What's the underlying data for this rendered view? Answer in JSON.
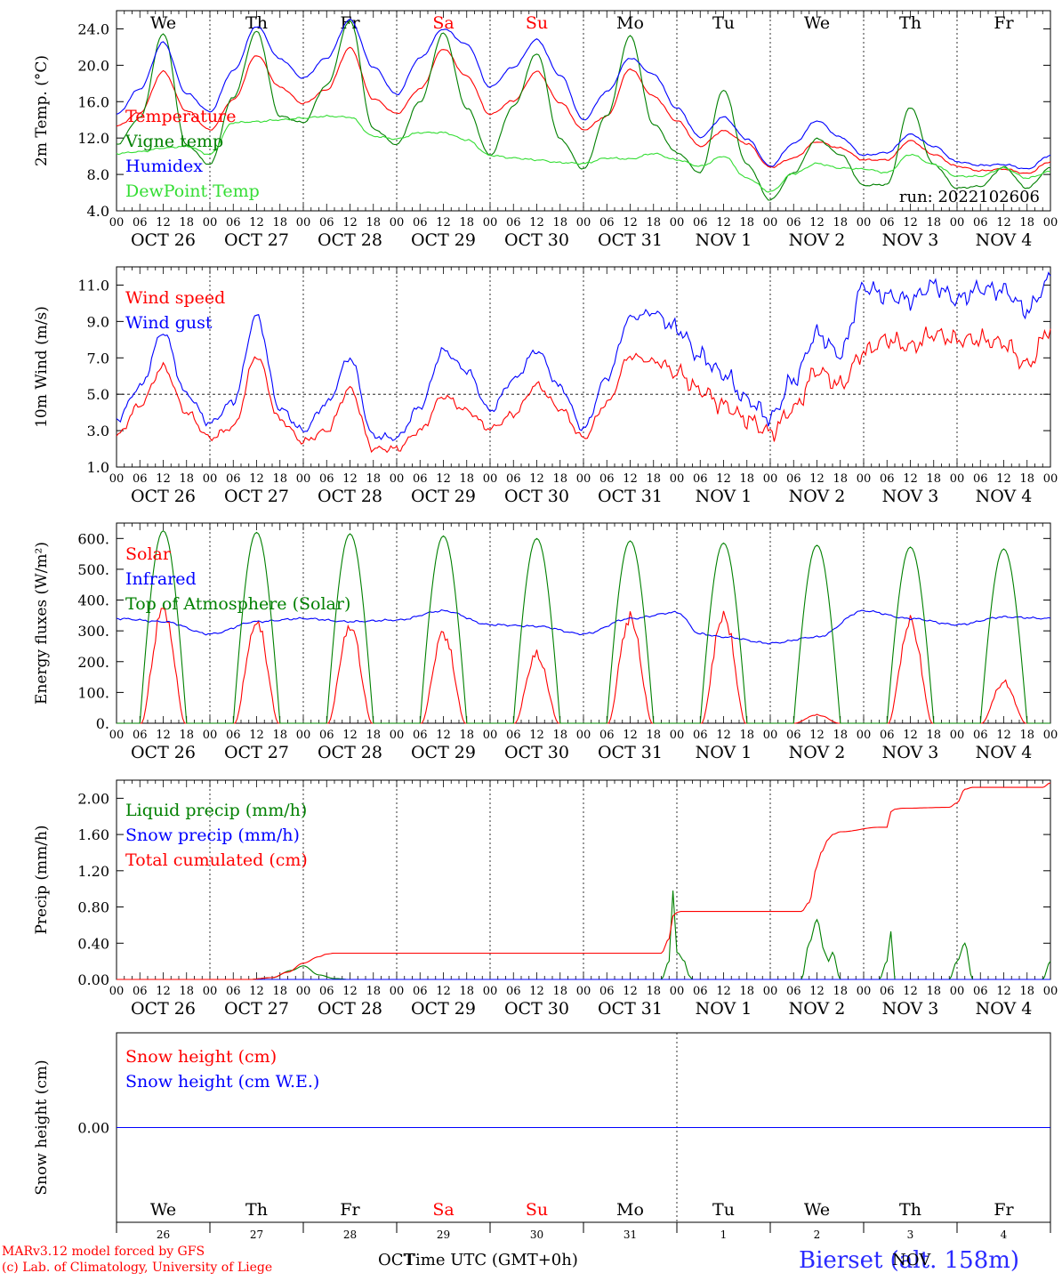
{
  "page": {
    "credits": [
      "MARv3.12 model forced by GFS",
      "(c) Lab. of Climatology, University of Liege"
    ],
    "station": "Bierset (alt. 158m)",
    "xaxis_title": "Time UTC (GMT+0h)",
    "month_left": "OCT",
    "month_right": "NOV"
  },
  "timeline": {
    "hour_ticks": [
      "00",
      "06",
      "12",
      "18"
    ],
    "final_tick": "00",
    "date_labels": [
      "OCT 26",
      "OCT 27",
      "OCT 28",
      "OCT 29",
      "OCT 30",
      "OCT 31",
      "NOV  1",
      "NOV  2",
      "NOV  3",
      "NOV  4"
    ],
    "weekdays": [
      "We",
      "Th",
      "Fr",
      "Sa",
      "Su",
      "Mo",
      "Tu",
      "We",
      "Th",
      "Fr"
    ],
    "weekday_colors": [
      "#000000",
      "#000000",
      "#000000",
      "#ff0000",
      "#ff0000",
      "#000000",
      "#000000",
      "#000000",
      "#000000",
      "#000000"
    ],
    "day_numbers": [
      "26",
      "27",
      "28",
      "29",
      "30",
      "31",
      "1",
      "2",
      "3",
      "4"
    ]
  },
  "chart_data": [
    {
      "type": "line",
      "id": "temp",
      "ylabel": "2m Temp. (°C)",
      "ylim": [
        4,
        26
      ],
      "yticks": [
        4.0,
        8.0,
        12.0,
        16.0,
        20.0,
        24.0
      ],
      "x_unit": "hours since 2022-10-26 00 UTC",
      "annotation": "run: 2022102606",
      "legend_position": "left",
      "series": [
        {
          "name": "Temperature",
          "color": "#ff0000",
          "x": [
            0,
            6,
            12,
            18,
            24,
            30,
            36,
            42,
            48,
            54,
            60,
            66,
            72,
            78,
            84,
            90,
            96,
            102,
            108,
            114,
            120,
            126,
            132,
            138,
            144,
            150,
            156,
            162,
            168,
            174,
            180,
            186,
            192,
            198,
            204,
            210,
            216,
            222,
            228,
            234,
            240
          ],
          "values": [
            13.3,
            14.8,
            19.3,
            15.0,
            12.9,
            16.2,
            21.1,
            17.6,
            15.8,
            17.3,
            21.9,
            16.3,
            14.7,
            17.4,
            21.8,
            18.8,
            14.6,
            16.1,
            19.3,
            15.9,
            12.9,
            14.4,
            19.6,
            16.6,
            13.9,
            11.1,
            12.8,
            11.4,
            8.8,
            9.8,
            11.6,
            10.9,
            9.6,
            9.6,
            11.7,
            10.2,
            8.9,
            8.4,
            8.6,
            8.1,
            9.4
          ]
        },
        {
          "name": "Vigne temp",
          "color": "#008000",
          "x": [
            0,
            6,
            12,
            18,
            24,
            30,
            36,
            42,
            48,
            54,
            60,
            66,
            72,
            78,
            84,
            90,
            96,
            102,
            108,
            114,
            120,
            126,
            132,
            138,
            144,
            150,
            156,
            162,
            168,
            174,
            180,
            186,
            192,
            198,
            204,
            210,
            216,
            222,
            228,
            234,
            240
          ],
          "values": [
            11.3,
            14.2,
            23.5,
            11.2,
            9.1,
            16.5,
            23.7,
            14.4,
            13.7,
            17.8,
            24.9,
            13.0,
            11.3,
            16.0,
            23.5,
            15.3,
            10.1,
            15.5,
            21.3,
            11.9,
            8.6,
            14.5,
            23.2,
            13.5,
            10.4,
            8.2,
            17.3,
            9.1,
            5.2,
            8.2,
            11.9,
            10.2,
            6.8,
            6.9,
            15.4,
            9.1,
            6.5,
            6.7,
            8.8,
            6.5,
            8.7
          ]
        },
        {
          "name": "Humidex",
          "color": "#0000ff",
          "x": [
            0,
            6,
            12,
            18,
            24,
            30,
            36,
            42,
            48,
            54,
            60,
            66,
            72,
            78,
            84,
            90,
            96,
            102,
            108,
            114,
            120,
            126,
            132,
            138,
            144,
            150,
            156,
            162,
            168,
            174,
            180,
            186,
            192,
            198,
            204,
            210,
            216,
            222,
            228,
            234,
            240
          ],
          "values": [
            14.6,
            17.4,
            22.5,
            16.9,
            14.9,
            19.4,
            24.3,
            20.7,
            18.6,
            20.8,
            25.0,
            19.8,
            16.8,
            20.8,
            24.0,
            22.3,
            17.6,
            19.8,
            22.8,
            18.9,
            14.0,
            17.1,
            20.8,
            19.0,
            15.3,
            12.1,
            14.3,
            11.9,
            8.9,
            11.4,
            13.9,
            12.1,
            10.1,
            10.4,
            12.4,
            11.1,
            9.4,
            9.0,
            9.1,
            8.6,
            10.1
          ]
        },
        {
          "name": "DewPoint Temp",
          "color": "#33dd33",
          "x": [
            0,
            6,
            12,
            18,
            24,
            30,
            36,
            42,
            48,
            54,
            60,
            66,
            72,
            78,
            84,
            90,
            96,
            102,
            108,
            114,
            120,
            126,
            132,
            138,
            144,
            150,
            156,
            162,
            168,
            174,
            180,
            186,
            192,
            198,
            204,
            210,
            216,
            222,
            228,
            234,
            240
          ],
          "values": [
            10.3,
            10.5,
            10.9,
            11.1,
            10.2,
            13.7,
            13.8,
            14.0,
            14.2,
            14.4,
            14.3,
            12.2,
            11.9,
            12.6,
            12.6,
            11.8,
            10.1,
            9.8,
            9.6,
            9.3,
            9.2,
            9.8,
            9.7,
            10.3,
            9.6,
            8.9,
            10.0,
            7.6,
            6.1,
            8.1,
            9.2,
            8.7,
            8.6,
            8.2,
            10.2,
            9.1,
            7.8,
            7.8,
            8.7,
            7.6,
            8.3
          ]
        }
      ]
    },
    {
      "type": "line",
      "id": "wind",
      "ylabel": "10m Wind (m/s)",
      "ylim": [
        1,
        12
      ],
      "yticks": [
        1.0,
        3.0,
        5.0,
        7.0,
        9.0,
        11.0
      ],
      "reference_line": 5.0,
      "x_unit": "hours since 2022-10-26 00 UTC",
      "legend_position": "left",
      "series": [
        {
          "name": "Wind speed",
          "color": "#ff0000",
          "x": [
            0,
            6,
            12,
            18,
            24,
            30,
            36,
            42,
            48,
            54,
            60,
            66,
            72,
            78,
            84,
            90,
            96,
            102,
            108,
            114,
            120,
            126,
            132,
            138,
            144,
            150,
            156,
            162,
            168,
            174,
            180,
            186,
            192,
            198,
            204,
            210,
            216,
            222,
            228,
            234,
            240
          ],
          "values": [
            2.7,
            4.4,
            6.5,
            4.0,
            2.6,
            3.2,
            7.1,
            3.6,
            2.4,
            3.0,
            5.3,
            2.0,
            2.0,
            3.0,
            4.9,
            4.1,
            3.1,
            3.9,
            5.5,
            4.2,
            2.6,
            4.5,
            7.1,
            6.8,
            6.2,
            5.2,
            4.4,
            3.6,
            2.9,
            4.2,
            6.3,
            5.5,
            7.3,
            8.0,
            7.6,
            8.3,
            8.0,
            8.0,
            7.8,
            6.6,
            8.6
          ]
        },
        {
          "name": "Wind gust",
          "color": "#0000ff",
          "x": [
            0,
            6,
            12,
            18,
            24,
            30,
            36,
            42,
            48,
            54,
            60,
            66,
            72,
            78,
            84,
            90,
            96,
            102,
            108,
            114,
            120,
            126,
            132,
            138,
            144,
            150,
            156,
            162,
            168,
            174,
            180,
            186,
            192,
            198,
            204,
            210,
            216,
            222,
            228,
            234,
            240
          ],
          "values": [
            3.6,
            5.4,
            8.4,
            5.0,
            3.4,
            4.6,
            9.3,
            4.2,
            3.0,
            4.5,
            7.0,
            2.7,
            2.6,
            4.3,
            7.4,
            6.3,
            4.1,
            5.8,
            7.4,
            5.4,
            3.1,
            5.9,
            9.2,
            9.5,
            8.6,
            7.1,
            6.1,
            4.7,
            3.7,
            5.8,
            8.3,
            7.2,
            10.9,
            10.4,
            10.2,
            11.0,
            10.2,
            10.8,
            10.7,
            9.6,
            11.3
          ]
        }
      ]
    },
    {
      "type": "line",
      "id": "energy",
      "ylabel": "Energy fluxes (W/m²)",
      "ylim": [
        0,
        650
      ],
      "yticks": [
        0,
        100,
        200,
        300,
        400,
        500,
        600
      ],
      "ytick_labels": [
        "0.",
        "100.",
        "200.",
        "300.",
        "400.",
        "500.",
        "600."
      ],
      "x_unit": "hours since 2022-10-26 00 UTC",
      "legend_position": "left",
      "series": [
        {
          "name": "Solar",
          "color": "#ff0000",
          "day_peaks": [
            410,
            360,
            345,
            320,
            245,
            380,
            390,
            30,
            360,
            145
          ]
        },
        {
          "name": "Infrared",
          "color": "#0000ff",
          "x": [
            0,
            12,
            24,
            36,
            48,
            60,
            72,
            84,
            96,
            108,
            120,
            132,
            144,
            150,
            156,
            168,
            180,
            192,
            204,
            216,
            228,
            240
          ],
          "values": [
            340,
            330,
            290,
            330,
            340,
            330,
            335,
            365,
            320,
            315,
            290,
            340,
            360,
            290,
            280,
            260,
            280,
            365,
            340,
            320,
            345,
            340
          ]
        },
        {
          "name": "Top of Atmosphere (Solar)",
          "color": "#008000",
          "day_peaks": [
            625,
            620,
            615,
            608,
            600,
            592,
            585,
            578,
            572,
            566
          ]
        }
      ]
    },
    {
      "type": "line",
      "id": "precip",
      "ylabel": "Precip (mm/h)",
      "ylim": [
        0,
        2.2
      ],
      "yticks": [
        0,
        0.4,
        0.8,
        1.2,
        1.6,
        2.0
      ],
      "ytick_labels": [
        "0.00",
        "0.40",
        "0.80",
        "1.20",
        "1.60",
        "2.00"
      ],
      "x_unit": "hours since 2022-10-26 00 UTC",
      "legend_position": "left",
      "series": [
        {
          "name": "Liquid precip (mm/h)",
          "color": "#008000",
          "x": [
            0,
            34,
            40,
            45,
            48,
            52,
            56,
            60,
            140,
            142,
            143,
            144,
            146,
            147,
            148,
            150,
            176,
            178,
            180,
            182,
            183,
            184,
            186,
            196,
            198,
            199,
            200,
            202,
            214,
            216,
            218,
            220,
            238,
            240
          ],
          "values": [
            0,
            0,
            0.02,
            0.1,
            0.15,
            0.05,
            0.01,
            0,
            0,
            0.2,
            0.98,
            0.3,
            0.2,
            0.05,
            0,
            0,
            0,
            0.4,
            0.66,
            0.3,
            0.2,
            0.3,
            0,
            0,
            0.2,
            0.53,
            0,
            0,
            0,
            0.2,
            0.4,
            0,
            0,
            0.2
          ]
        },
        {
          "name": "Snow precip (mm/h)",
          "color": "#0000ff",
          "x": [
            0,
            240
          ],
          "values": [
            0,
            0
          ]
        },
        {
          "name": "Total cumulated (cm)",
          "color": "#ff0000",
          "x": [
            0,
            34,
            40,
            44,
            48,
            52,
            54,
            56,
            60,
            140,
            142,
            143,
            144,
            145,
            176,
            178,
            180,
            181,
            183,
            184,
            186,
            196,
            198,
            199,
            200,
            202,
            214,
            216,
            218,
            220,
            238,
            240
          ],
          "values": [
            0,
            0,
            0.02,
            0.08,
            0.18,
            0.25,
            0.28,
            0.29,
            0.29,
            0.29,
            0.45,
            0.7,
            0.74,
            0.75,
            0.75,
            0.85,
            1.25,
            1.4,
            1.55,
            1.6,
            1.63,
            1.68,
            1.68,
            1.85,
            1.88,
            1.89,
            1.9,
            1.95,
            2.1,
            2.12,
            2.12,
            2.17
          ]
        }
      ]
    },
    {
      "type": "line",
      "id": "snow",
      "ylabel": "Snow height (cm)",
      "ylim": [
        -1,
        1
      ],
      "yticks": [
        0
      ],
      "ytick_labels": [
        "0.00"
      ],
      "x_unit": "hours since 2022-10-26 00 UTC",
      "legend_position": "left",
      "series": [
        {
          "name": "Snow height (cm)",
          "color": "#ff0000",
          "x": [
            0,
            240
          ],
          "values": [
            0,
            0
          ]
        },
        {
          "name": "Snow height (cm W.E.)",
          "color": "#0000ff",
          "x": [
            0,
            240
          ],
          "values": [
            0,
            0
          ]
        }
      ]
    }
  ]
}
